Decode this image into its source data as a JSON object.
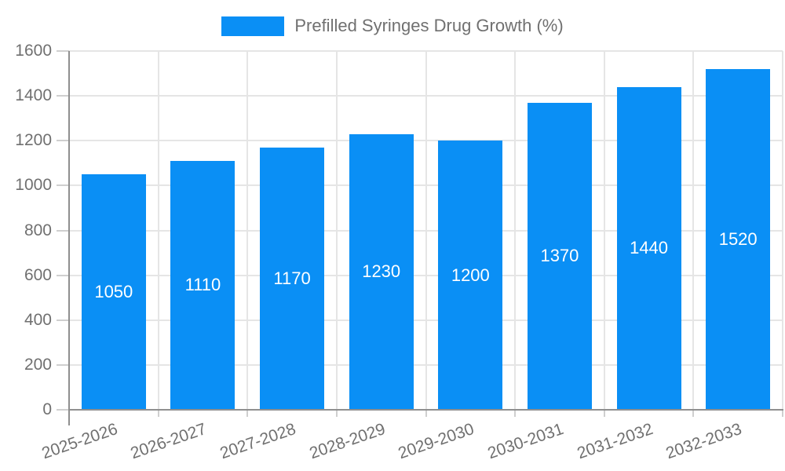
{
  "legend": {
    "label": "Prefilled Syringes Drug Growth (%)"
  },
  "chart_data": {
    "type": "bar",
    "title": "Prefilled Syringes Drug Growth (%)",
    "categories": [
      "2025-2026",
      "2026-2027",
      "2027-2028",
      "2028-2029",
      "2029-2030",
      "2030-2031",
      "2031-2032",
      "2032-2033"
    ],
    "values": [
      1050,
      1110,
      1170,
      1230,
      1200,
      1370,
      1440,
      1520
    ],
    "xlabel": "",
    "ylabel": "",
    "ylim": [
      0,
      1600
    ],
    "yticks": [
      0,
      200,
      400,
      600,
      800,
      1000,
      1200,
      1400,
      1600
    ],
    "grid": true,
    "legend_position": "top-center",
    "x_label_rotation_deg": -19,
    "value_labels_inside_bars": true
  },
  "colors": {
    "bar": "#0A8FF5",
    "axis_line": "#8F8F8F",
    "gridline": "#E5E5E5",
    "tick": "#CFCFCF",
    "axis_text": "#707070",
    "value_label": "#FFFFFF",
    "background": "#FFFFFF"
  }
}
